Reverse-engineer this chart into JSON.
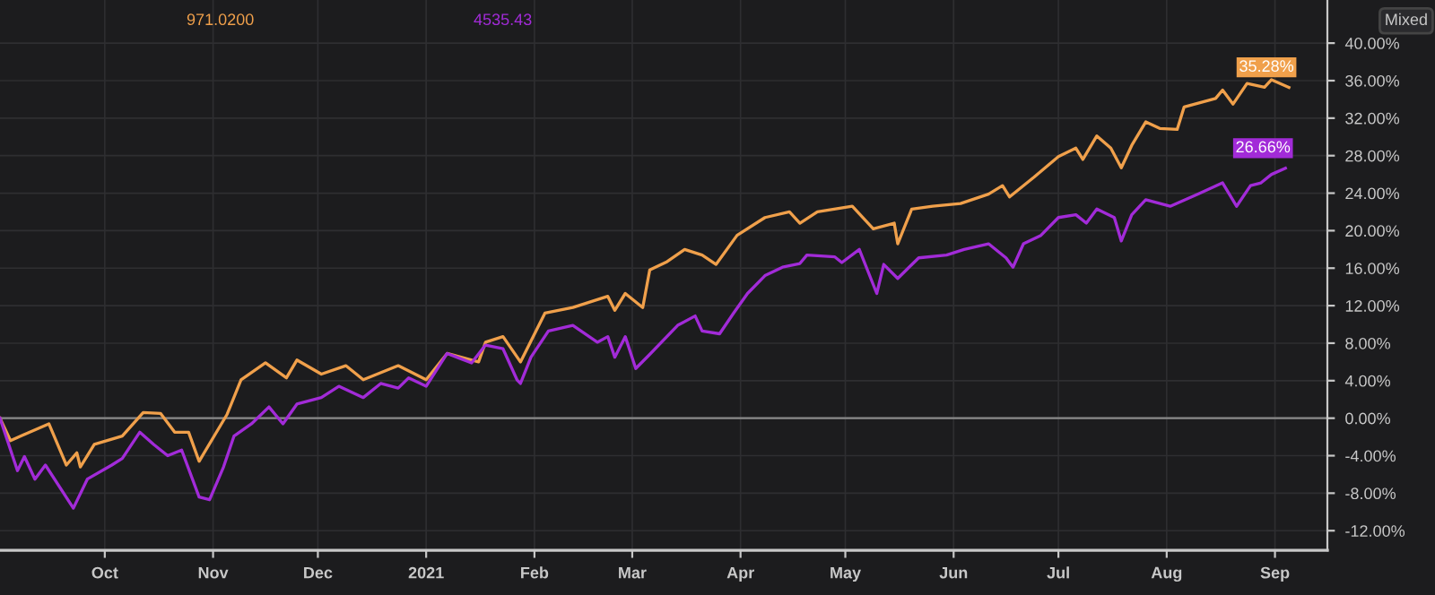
{
  "chart_data": {
    "type": "line",
    "xlim": [
      "2020-09-01",
      "2021-09-16"
    ],
    "xticks": [
      {
        "value": "2020-10-01",
        "label": "Oct"
      },
      {
        "value": "2020-11-01",
        "label": "Nov"
      },
      {
        "value": "2020-12-01",
        "label": "Dec"
      },
      {
        "value": "2021-01-01",
        "label": "2021"
      },
      {
        "value": "2021-02-01",
        "label": "Feb"
      },
      {
        "value": "2021-03-01",
        "label": "Mar"
      },
      {
        "value": "2021-04-01",
        "label": "Apr"
      },
      {
        "value": "2021-05-01",
        "label": "May"
      },
      {
        "value": "2021-06-01",
        "label": "Jun"
      },
      {
        "value": "2021-07-01",
        "label": "Jul"
      },
      {
        "value": "2021-08-01",
        "label": "Aug"
      },
      {
        "value": "2021-09-01",
        "label": "Sep"
      }
    ],
    "ylim": [
      -14.1,
      44.6
    ],
    "yticks": [
      {
        "value": -12,
        "label": "-12.00%"
      },
      {
        "value": -8,
        "label": "-8.00%"
      },
      {
        "value": -4,
        "label": "-4.00%"
      },
      {
        "value": 0,
        "label": "0.00%"
      },
      {
        "value": 4,
        "label": "4.00%"
      },
      {
        "value": 8,
        "label": "8.00%"
      },
      {
        "value": 12,
        "label": "12.00%"
      },
      {
        "value": 16,
        "label": "16.00%"
      },
      {
        "value": 20,
        "label": "20.00%"
      },
      {
        "value": 24,
        "label": "24.00%"
      },
      {
        "value": 28,
        "label": "28.00%"
      },
      {
        "value": 32,
        "label": "32.00%"
      },
      {
        "value": 36,
        "label": "36.00%"
      },
      {
        "value": 40,
        "label": "40.00%"
      }
    ],
    "grid": true,
    "ref_lines": [
      {
        "axis": "y",
        "value": 0,
        "color": "#8a8a8a"
      }
    ],
    "annotations": [
      "971.0200",
      "4535.43",
      "Mixed"
    ],
    "series": [
      {
        "color": "#f0a04b",
        "x": [
          "2020-09-01",
          "2020-09-04",
          "2020-09-07",
          "2020-09-15",
          "2020-09-20",
          "2020-09-23",
          "2020-09-24",
          "2020-09-28",
          "2020-10-06",
          "2020-10-12",
          "2020-10-17",
          "2020-10-21",
          "2020-10-25",
          "2020-10-28",
          "2020-11-05",
          "2020-11-09",
          "2020-11-16",
          "2020-11-22",
          "2020-11-25",
          "2020-12-02",
          "2020-12-09",
          "2020-12-14",
          "2020-12-24",
          "2021-01-01",
          "2021-01-07",
          "2021-01-16",
          "2021-01-18",
          "2021-01-23",
          "2021-01-28",
          "2021-02-04",
          "2021-02-12",
          "2021-02-22",
          "2021-02-24",
          "2021-02-27",
          "2021-03-04",
          "2021-03-06",
          "2021-03-11",
          "2021-03-16",
          "2021-03-21",
          "2021-03-25",
          "2021-03-31",
          "2021-04-08",
          "2021-04-15",
          "2021-04-18",
          "2021-04-23",
          "2021-05-03",
          "2021-05-09",
          "2021-05-15",
          "2021-05-16",
          "2021-05-20",
          "2021-05-26",
          "2021-06-03",
          "2021-06-11",
          "2021-06-15",
          "2021-06-17",
          "2021-06-24",
          "2021-07-01",
          "2021-07-06",
          "2021-07-08",
          "2021-07-12",
          "2021-07-16",
          "2021-07-19",
          "2021-07-22",
          "2021-07-26",
          "2021-07-30",
          "2021-08-04",
          "2021-08-06",
          "2021-08-15",
          "2021-08-17",
          "2021-08-20",
          "2021-08-24",
          "2021-08-29",
          "2021-08-31",
          "2021-09-05"
        ],
        "values": [
          0,
          -2.4,
          -1.9,
          -0.6,
          -5.0,
          -3.7,
          -5.2,
          -2.8,
          -1.9,
          0.6,
          0.5,
          -1.5,
          -1.5,
          -4.6,
          0.4,
          4.1,
          5.9,
          4.3,
          6.2,
          4.7,
          5.6,
          4.1,
          5.6,
          4.1,
          6.9,
          6.0,
          8.1,
          8.7,
          6.0,
          11.2,
          11.8,
          13.0,
          11.5,
          13.3,
          11.8,
          15.8,
          16.7,
          18.0,
          17.4,
          16.4,
          19.5,
          21.4,
          22.0,
          20.8,
          22.0,
          22.6,
          20.2,
          20.8,
          18.6,
          22.3,
          22.6,
          22.9,
          23.9,
          24.8,
          23.6,
          25.7,
          27.9,
          28.8,
          27.6,
          30.1,
          28.8,
          26.7,
          29.1,
          31.6,
          30.9,
          30.8,
          33.2,
          34.1,
          35.0,
          33.5,
          35.7,
          35.3,
          36.1,
          35.28
        ],
        "value_labels": [
          null,
          null,
          null,
          null,
          null,
          null,
          null,
          null,
          null,
          null,
          null,
          null,
          null,
          null,
          null,
          null,
          null,
          null,
          null,
          null,
          null,
          null,
          null,
          null,
          null,
          null,
          null,
          null,
          null,
          null,
          null,
          null,
          null,
          null,
          null,
          null,
          null,
          null,
          null,
          null,
          null,
          null,
          null,
          null,
          null,
          null,
          null,
          null,
          null,
          null,
          null,
          null,
          null,
          null,
          null,
          null,
          null,
          null,
          null,
          null,
          null,
          null,
          null,
          null,
          null,
          null,
          null,
          null,
          null,
          null,
          null,
          null,
          null,
          "35.28%"
        ]
      },
      {
        "color": "#a22bd8",
        "x": [
          "2020-09-01",
          "2020-09-06",
          "2020-09-08",
          "2020-09-11",
          "2020-09-14",
          "2020-09-22",
          "2020-09-26",
          "2020-10-03",
          "2020-10-06",
          "2020-10-11",
          "2020-10-15",
          "2020-10-19",
          "2020-10-23",
          "2020-10-28",
          "2020-10-31",
          "2020-11-04",
          "2020-11-07",
          "2020-11-12",
          "2020-11-17",
          "2020-11-21",
          "2020-11-25",
          "2020-12-02",
          "2020-12-07",
          "2020-12-14",
          "2020-12-19",
          "2020-12-24",
          "2020-12-27",
          "2021-01-01",
          "2021-01-07",
          "2021-01-14",
          "2021-01-18",
          "2021-01-23",
          "2021-01-27",
          "2021-01-28",
          "2021-01-31",
          "2021-02-05",
          "2021-02-12",
          "2021-02-19",
          "2021-02-22",
          "2021-02-24",
          "2021-02-27",
          "2021-03-02",
          "2021-03-06",
          "2021-03-14",
          "2021-03-19",
          "2021-03-21",
          "2021-03-26",
          "2021-03-30",
          "2021-04-03",
          "2021-04-08",
          "2021-04-13",
          "2021-04-18",
          "2021-04-20",
          "2021-04-28",
          "2021-04-30",
          "2021-05-05",
          "2021-05-10",
          "2021-05-12",
          "2021-05-16",
          "2021-05-22",
          "2021-05-30",
          "2021-06-04",
          "2021-06-11",
          "2021-06-16",
          "2021-06-18",
          "2021-06-21",
          "2021-06-26",
          "2021-07-01",
          "2021-07-06",
          "2021-07-09",
          "2021-07-12",
          "2021-07-17",
          "2021-07-19",
          "2021-07-22",
          "2021-07-26",
          "2021-08-02",
          "2021-08-10",
          "2021-08-17",
          "2021-08-21",
          "2021-08-25",
          "2021-08-28",
          "2021-08-31",
          "2021-09-04"
        ],
        "values": [
          0,
          -5.6,
          -4.1,
          -6.5,
          -5.0,
          -9.6,
          -6.5,
          -5.0,
          -4.3,
          -1.5,
          -2.8,
          -4.0,
          -3.4,
          -8.4,
          -8.7,
          -5.2,
          -1.9,
          -0.6,
          1.2,
          -0.6,
          1.5,
          2.2,
          3.4,
          2.2,
          3.7,
          3.2,
          4.3,
          3.4,
          6.9,
          5.9,
          7.8,
          7.4,
          4.1,
          3.7,
          6.5,
          9.3,
          9.9,
          8.1,
          8.7,
          6.5,
          8.7,
          5.3,
          6.8,
          9.9,
          10.9,
          9.3,
          9.0,
          11.2,
          13.3,
          15.2,
          16.1,
          16.5,
          17.4,
          17.2,
          16.6,
          18.0,
          13.3,
          16.4,
          14.9,
          17.1,
          17.4,
          18.0,
          18.6,
          17.1,
          16.1,
          18.6,
          19.5,
          21.4,
          21.7,
          20.8,
          22.3,
          21.4,
          18.9,
          21.7,
          23.3,
          22.6,
          23.9,
          25.1,
          22.6,
          24.8,
          25.1,
          26.0,
          26.66
        ],
        "value_labels": [
          null,
          null,
          null,
          null,
          null,
          null,
          null,
          null,
          null,
          null,
          null,
          null,
          null,
          null,
          null,
          null,
          null,
          null,
          null,
          null,
          null,
          null,
          null,
          null,
          null,
          null,
          null,
          null,
          null,
          null,
          null,
          null,
          null,
          null,
          null,
          null,
          null,
          null,
          null,
          null,
          null,
          null,
          null,
          null,
          null,
          null,
          null,
          null,
          null,
          null,
          null,
          null,
          null,
          null,
          null,
          null,
          null,
          null,
          null,
          null,
          null,
          null,
          null,
          null,
          null,
          null,
          null,
          null,
          null,
          null,
          null,
          null,
          null,
          null,
          null,
          null,
          null,
          null,
          null,
          null,
          null,
          null,
          "26.66%"
        ]
      }
    ]
  }
}
